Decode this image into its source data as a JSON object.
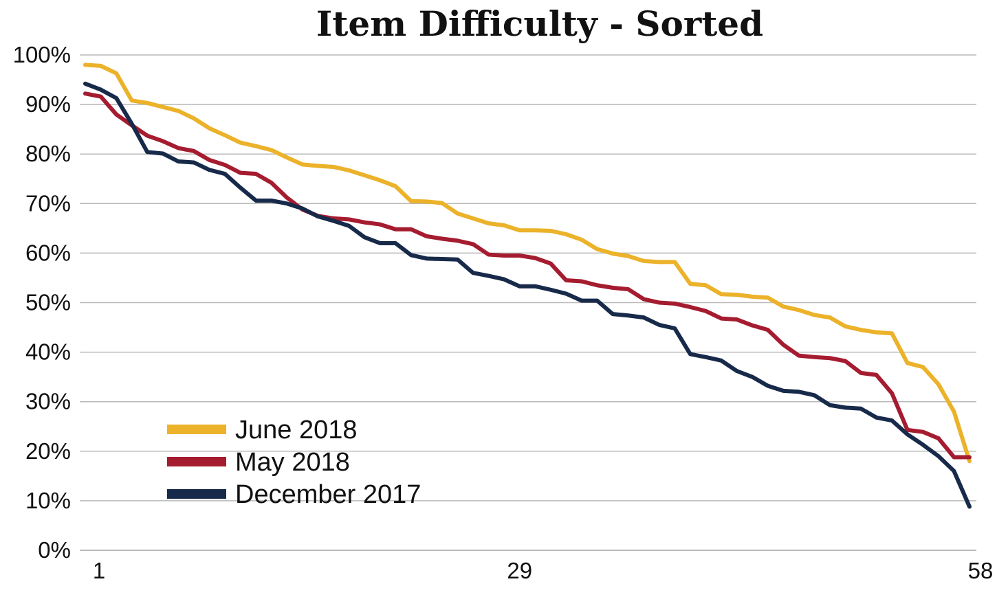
{
  "chart_data": {
    "type": "line",
    "title": "Item Difficulty - Sorted",
    "xlabel": "",
    "ylabel": "",
    "x_ticks": [
      "1",
      "29",
      "58"
    ],
    "y_ticks": [
      "0%",
      "10%",
      "20%",
      "30%",
      "40%",
      "50%",
      "60%",
      "70%",
      "80%",
      "90%",
      "100%"
    ],
    "ylim": [
      0,
      100
    ],
    "xlim": [
      1,
      58
    ],
    "grid": true,
    "legend_position": "bottom-left",
    "series": [
      {
        "name": "June 2018",
        "color": "#EBB22A",
        "values": [
          98,
          97.8,
          96.3,
          90.8,
          90.3,
          89.5,
          88.7,
          87.2,
          85.2,
          83.8,
          82.3,
          81.6,
          80.8,
          79.3,
          77.9,
          77.6,
          77.4,
          76.7,
          75.7,
          74.7,
          73.5,
          70.5,
          70.4,
          70.1,
          68,
          67,
          66,
          65.6,
          64.6,
          64.6,
          64.5,
          63.8,
          62.7,
          60.8,
          59.9,
          59.4,
          58.4,
          58.2,
          58.2,
          53.8,
          53.5,
          51.7,
          51.6,
          51.2,
          51,
          49.2,
          48.5,
          47.5,
          47,
          45.2,
          44.5,
          44,
          43.8,
          37.8,
          37,
          33.5,
          28,
          18
        ]
      },
      {
        "name": "May 2018",
        "color": "#A51C30",
        "values": [
          92.2,
          91.6,
          88,
          85.8,
          83.7,
          82.6,
          81.2,
          80.6,
          78.8,
          77.8,
          76.2,
          76,
          74.2,
          71.2,
          68.8,
          67.5,
          67,
          66.8,
          66.2,
          65.8,
          64.8,
          64.8,
          63.4,
          62.9,
          62.5,
          61.8,
          59.7,
          59.5,
          59.5,
          59,
          57.9,
          54.5,
          54.3,
          53.5,
          53,
          52.7,
          50.7,
          50,
          49.8,
          49.1,
          48.3,
          46.8,
          46.6,
          45.4,
          44.5,
          41.5,
          39.3,
          39,
          38.8,
          38.2,
          35.8,
          35.4,
          31.7,
          24.3,
          23.9,
          22.6,
          18.8,
          18.8
        ]
      },
      {
        "name": "December 2017",
        "color": "#172A4A",
        "values": [
          94.2,
          93,
          91.3,
          86.1,
          80.4,
          80.1,
          78.5,
          78.3,
          76.8,
          76,
          73.2,
          70.6,
          70.6,
          70,
          69,
          67.4,
          66.5,
          65.5,
          63.2,
          62,
          62,
          59.6,
          58.9,
          58.8,
          58.7,
          56,
          55.4,
          54.7,
          53.3,
          53.3,
          52.6,
          51.8,
          50.4,
          50.4,
          47.7,
          47.4,
          47,
          45.5,
          44.8,
          39.6,
          39,
          38.3,
          36.2,
          35,
          33.2,
          32.2,
          32,
          31.3,
          29.3,
          28.8,
          28.6,
          26.8,
          26.2,
          23.4,
          21.3,
          19,
          16,
          8.8
        ]
      }
    ]
  }
}
